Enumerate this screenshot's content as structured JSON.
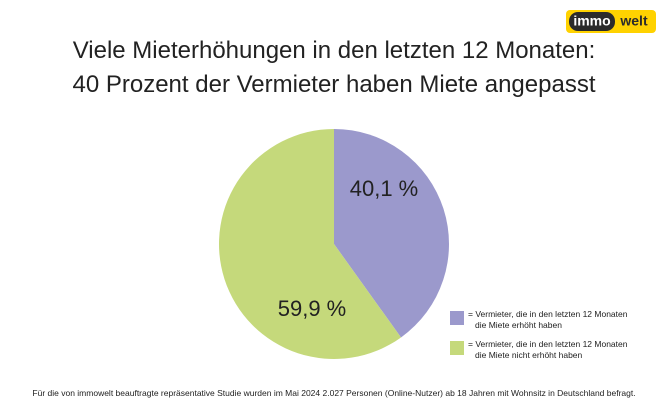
{
  "logo": {
    "left": "immo",
    "right": "welt"
  },
  "chart_data": {
    "type": "pie",
    "title": [
      "Viele Mieterhöhungen in den letzten 12 Monaten:",
      "40 Prozent der Vermieter haben Miete angepasst"
    ],
    "categories": [
      "= Vermieter, die in den letzten 12 Monaten die Miete erhöht haben",
      "= Vermieter, die in den letzten 12 Monaten die Miete nicht erhöht haben"
    ],
    "values": [
      40.1,
      59.9
    ],
    "value_labels": [
      "40,1 %",
      "59,9 %"
    ],
    "colors": [
      "#9b99cc",
      "#c5d97b"
    ],
    "footnote": "Für die von immowelt beauftragte repräsentative Studie wurden im Mai 2024 2.027 Personen (Online-Nutzer) ab 18 Jahren mit Wohnsitz in Deutschland befragt."
  }
}
